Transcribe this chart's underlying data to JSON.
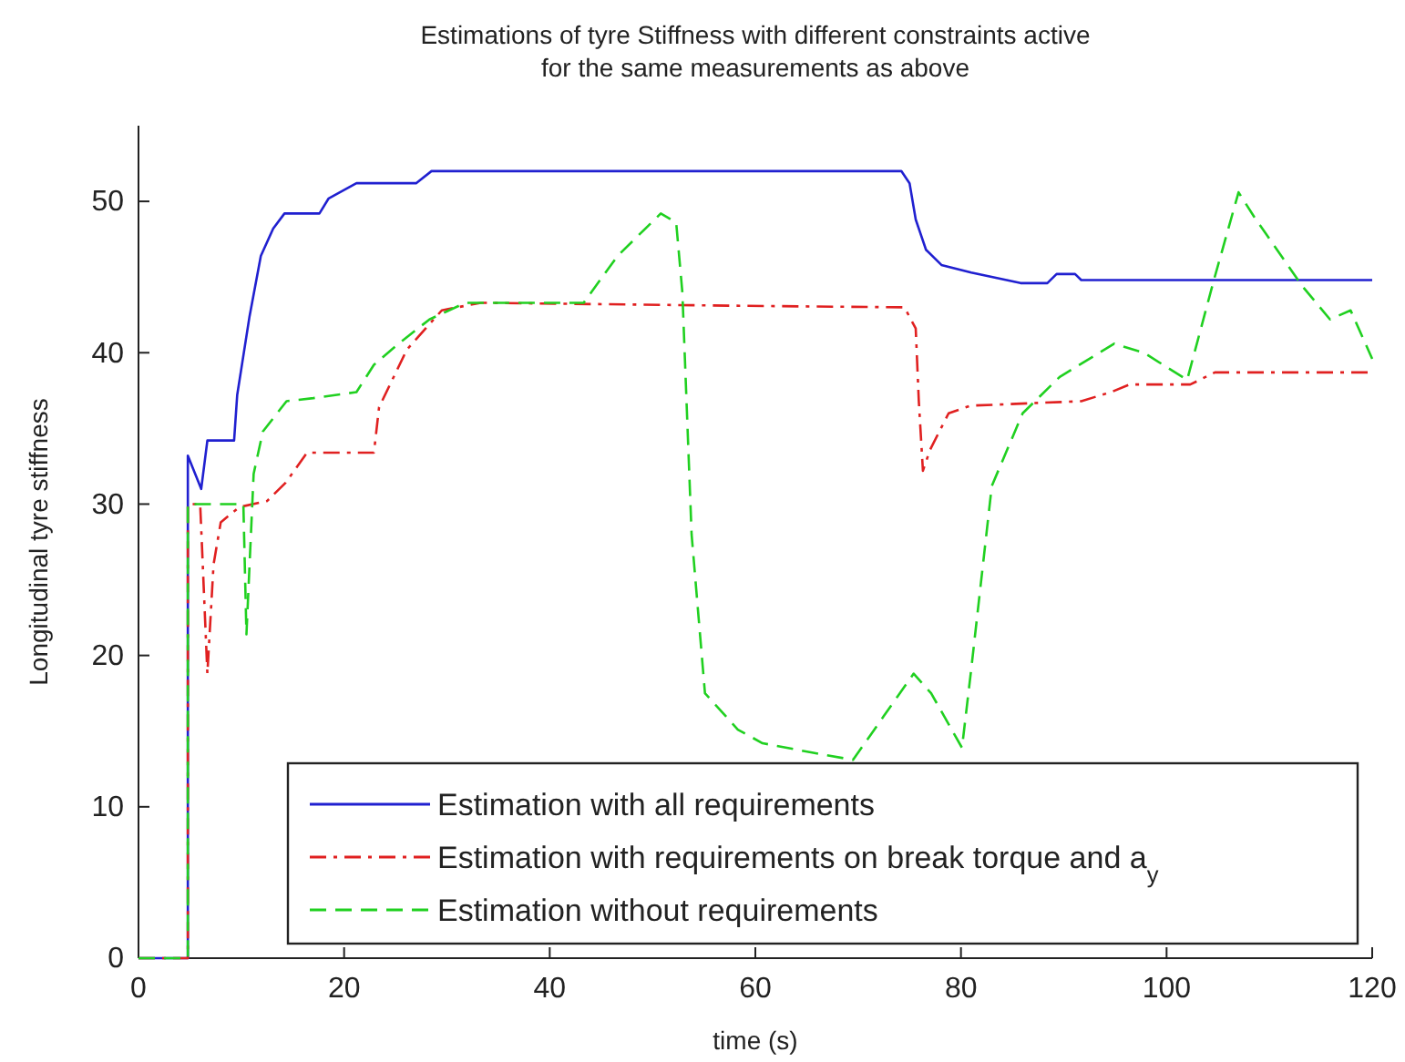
{
  "chart_data": {
    "type": "line",
    "title": "Estimations of tyre Stiffness with different constraints active\nfor the same measurements as above",
    "xlabel": "time (s)",
    "ylabel": "Longitudinal tyre stiffness",
    "xlim": [
      0,
      120
    ],
    "ylim": [
      0,
      55
    ],
    "xticks": [
      0,
      20,
      40,
      60,
      80,
      100,
      120
    ],
    "yticks": [
      0,
      10,
      20,
      30,
      40,
      50
    ],
    "legend": "bottom right",
    "grid": false,
    "marker": "none",
    "series": [
      {
        "name": "Estimation with all requirements",
        "color": "#2020d0",
        "line_style": "solid",
        "x": [
          0,
          4.8,
          4.8,
          6.1,
          6.7,
          9.3,
          9.6,
          10.8,
          11.9,
          13.1,
          14.2,
          17.6,
          18.5,
          21.2,
          27.0,
          28.5,
          74.2,
          75.0,
          75.6,
          76.6,
          78.1,
          81.0,
          85.8,
          88.4,
          89.3,
          91.1,
          91.7,
          120
        ],
        "values": [
          0,
          0,
          33.2,
          31,
          34.2,
          34.2,
          37.2,
          42.4,
          46.4,
          48.2,
          49.2,
          49.2,
          50.2,
          51.2,
          51.2,
          52,
          52,
          51.2,
          48.8,
          46.8,
          45.8,
          45.3,
          44.6,
          44.6,
          45.2,
          45.2,
          44.8,
          44.8
        ]
      },
      {
        "name": "Estimation with requirements on break torque and a$_{y}$",
        "color": "#e02020",
        "line_style": "dashdot",
        "x": [
          0,
          4.8,
          4.8,
          6.0,
          6.7,
          7.3,
          8.0,
          9.8,
          12.5,
          14.3,
          16.4,
          22.9,
          23.4,
          26.1,
          29.5,
          33.3,
          58.8,
          74.5,
          75.6,
          75.9,
          76.3,
          77.0,
          78.8,
          80.9,
          91.7,
          94.6,
          96.4,
          102.3,
          104.7,
          120
        ],
        "values": [
          0,
          0,
          30,
          30,
          18.8,
          26,
          28.8,
          29.8,
          30.2,
          31.4,
          33.4,
          33.4,
          36.4,
          40.2,
          42.8,
          43.3,
          43.1,
          43.0,
          41.6,
          36.8,
          32.2,
          33.6,
          36.0,
          36.5,
          36.8,
          37.4,
          37.9,
          37.9,
          38.7,
          38.7
        ]
      },
      {
        "name": "Estimation without requirements",
        "color": "#20d020",
        "line_style": "dashed",
        "x": [
          0,
          4.8,
          4.8,
          10.2,
          10.5,
          11.2,
          12.1,
          14.4,
          17.0,
          21.2,
          22.9,
          25.3,
          28.3,
          31.8,
          43.3,
          46.6,
          50.8,
          52.3,
          52.9,
          53.8,
          55.1,
          58.3,
          60.7,
          65.4,
          69.5,
          72.5,
          75.4,
          77.1,
          80.1,
          81.0,
          83.0,
          86.0,
          89.6,
          94.9,
          97.8,
          102.0,
          104.6,
          107.0,
          108.5,
          113.2,
          115.9,
          117.9,
          120
        ],
        "values": [
          0,
          0,
          30,
          30,
          21.4,
          32,
          34.8,
          36.8,
          37.0,
          37.4,
          39.2,
          40.6,
          42.2,
          43.3,
          43.3,
          46.4,
          49.2,
          48.6,
          44,
          28,
          17.5,
          15.1,
          14.2,
          13.6,
          13.1,
          16.0,
          18.8,
          17.5,
          13.9,
          19.1,
          31.2,
          36.0,
          38.4,
          40.6,
          40.0,
          38.2,
          44.8,
          50.6,
          49.0,
          44.4,
          42.2,
          42.8,
          39.6
        ]
      }
    ]
  }
}
